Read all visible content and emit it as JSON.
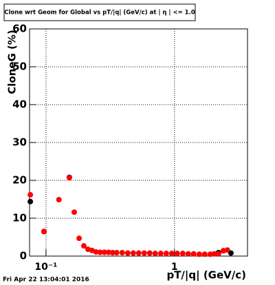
{
  "chart_data": {
    "type": "scatter",
    "title": "Clone wrt Geom for Global vs pT/|q| (GeV/c) at | η | <= 1.0",
    "x_label": "pT/|q| (GeV/c)",
    "y_label": "CloneG (%)",
    "footer": "Fri Apr 22 13:04:01 2016",
    "log_x": true,
    "grid": true,
    "xlim": [
      0.0745,
      3.7
    ],
    "ylim": [
      0,
      60
    ],
    "xticks": [
      {
        "value": 0.1,
        "label": "10⁻¹"
      },
      1
    ],
    "yticks": [
      0,
      10,
      20,
      30,
      40,
      50,
      60
    ],
    "series": [
      {
        "name": "Black",
        "color": "#000000",
        "x": [
          0.0755,
          0.0964,
          0.152,
          2.2,
          2.4,
          2.75
        ],
        "values": [
          14.4,
          6.5,
          20.8,
          0.9,
          1.4,
          0.8
        ]
      },
      {
        "name": "Red",
        "color": "#ff0000",
        "x": [
          0.0755,
          0.0964,
          0.126,
          0.152,
          0.166,
          0.181,
          0.197,
          0.212,
          0.228,
          0.245,
          0.264,
          0.285,
          0.307,
          0.33,
          0.355,
          0.392,
          0.433,
          0.478,
          0.527,
          0.582,
          0.642,
          0.708,
          0.782,
          0.863,
          0.952,
          1.05,
          1.16,
          1.28,
          1.41,
          1.56,
          1.72,
          1.9,
          2.04,
          2.2,
          2.4,
          2.58
        ],
        "values": [
          16.2,
          6.5,
          14.9,
          20.7,
          11.6,
          4.7,
          2.7,
          1.8,
          1.5,
          1.1,
          1.0,
          1.0,
          1.0,
          0.9,
          0.9,
          0.9,
          0.8,
          0.8,
          0.8,
          0.8,
          0.8,
          0.7,
          0.7,
          0.7,
          0.7,
          0.7,
          0.7,
          0.6,
          0.6,
          0.5,
          0.5,
          0.5,
          0.6,
          0.6,
          1.4,
          1.6
        ]
      }
    ]
  }
}
